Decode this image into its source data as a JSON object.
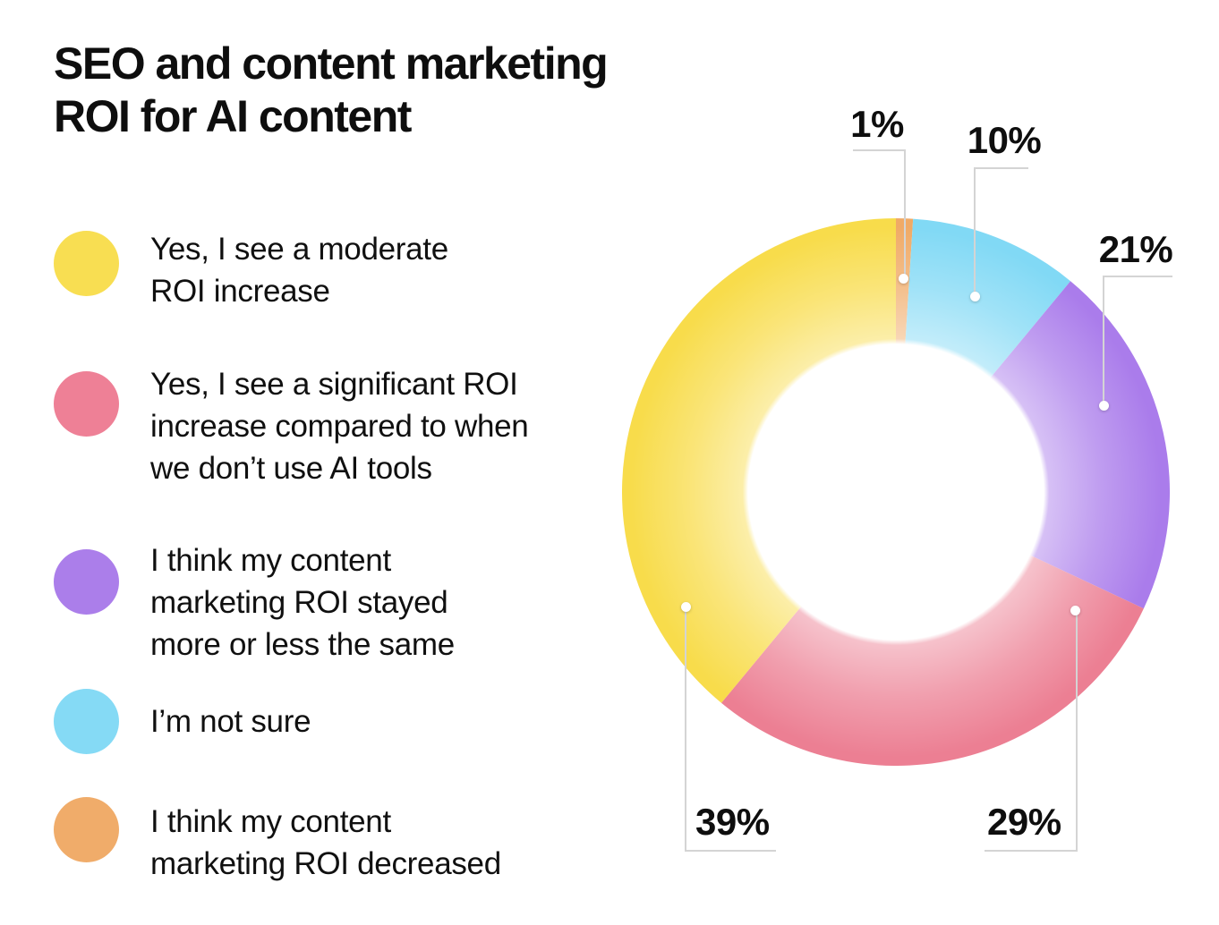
{
  "title": "SEO and content marketing\nROI for AI content",
  "legend": {
    "items": [
      {
        "label": "Yes, I see a moderate\nROI increase",
        "color": "#F8DE52"
      },
      {
        "label": "Yes, I see a significant ROI\nincrease compared to when\nwe don’t use AI tools",
        "color": "#EE8096"
      },
      {
        "label": "I think my content\nmarketing ROI stayed\nmore or less the same",
        "color": "#AB7EEA"
      },
      {
        "label": "I’m not sure",
        "color": "#85DAF5"
      },
      {
        "label": "I think my content\nmarketing ROI decreased",
        "color": "#F0AC6A"
      }
    ]
  },
  "chart_data": {
    "type": "pie",
    "subtype": "donut",
    "title": "SEO and content marketing ROI for AI content",
    "unit": "percent",
    "direction": "clockwise",
    "start_angle_deg": 0,
    "inner_radius_ratio": 0.54,
    "legend_position": "left",
    "callout_line_color": "#d4d4d4",
    "slices": [
      {
        "name": "I think my content marketing ROI decreased",
        "value": 1,
        "label": "1%",
        "color": "#F0AA66"
      },
      {
        "name": "I’m not sure",
        "value": 10,
        "label": "10%",
        "color": "#81D9F5"
      },
      {
        "name": "I think my content marketing ROI stayed more or less the same",
        "value": 21,
        "label": "21%",
        "color": "#AA7CEB"
      },
      {
        "name": "Yes, I see a significant ROI increase compared to when we don’t use AI tools",
        "value": 29,
        "label": "29%",
        "color": "#EC7F93"
      },
      {
        "name": "Yes, I see a moderate ROI increase",
        "value": 39,
        "label": "39%",
        "color": "#F8DC4B"
      }
    ]
  }
}
